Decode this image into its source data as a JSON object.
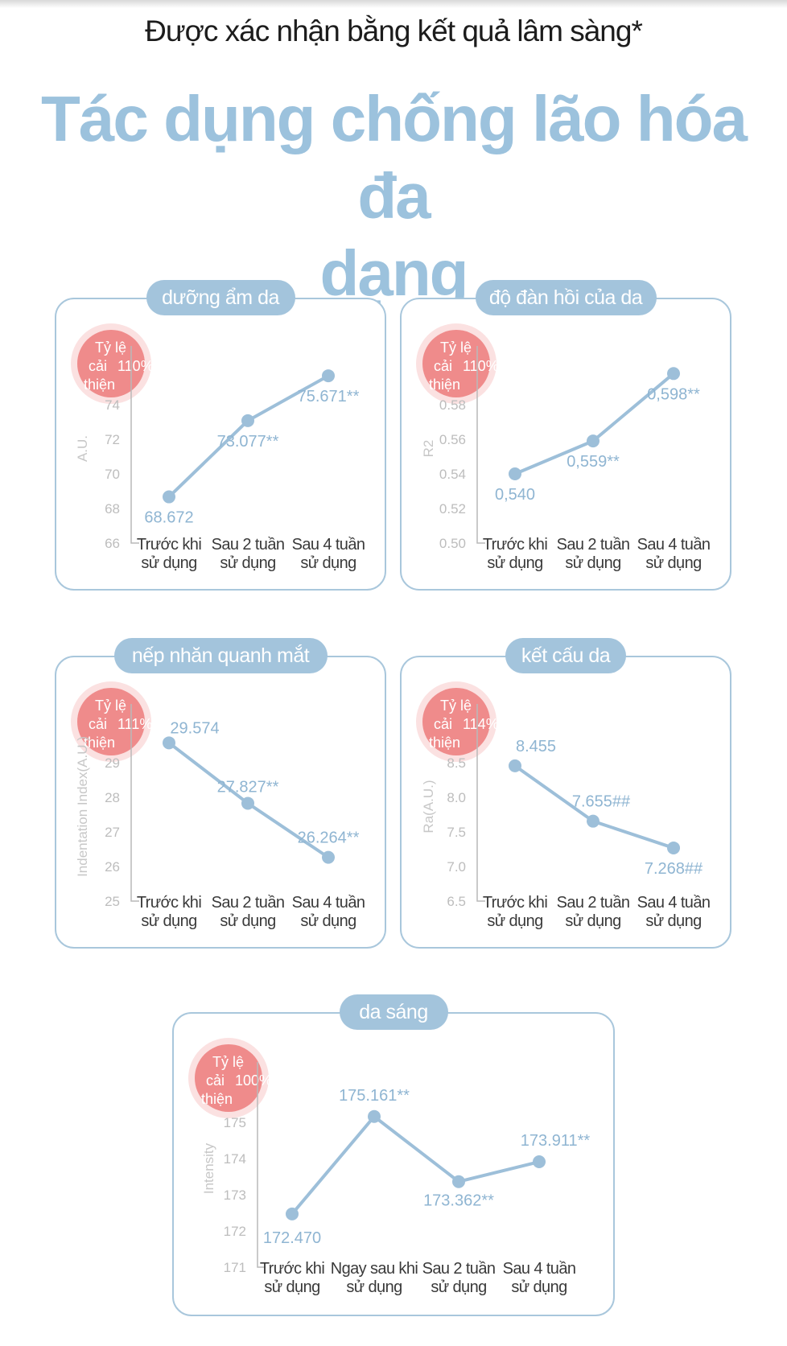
{
  "header": {
    "subtitle": "Được xác nhận bằng kết quả lâm sàng*",
    "headline_line1": "Tác dụng chống lão hóa đa",
    "headline_line2": "dạng"
  },
  "badge": {
    "line1": "Tỷ lệ",
    "line2": "cải",
    "line3": "thiện"
  },
  "colors": {
    "accent": "#9cc2dd",
    "pill": "#a3c4dc",
    "series": "#9dbfd9",
    "badge": "#ef8b8b"
  },
  "chart_data": [
    {
      "type": "line",
      "title": "dưỡng ẩm da",
      "improvement": "110%",
      "ylabel": "A.U.",
      "ylim": [
        66,
        76
      ],
      "yticks": [
        "66",
        "68",
        "70",
        "72",
        "74"
      ],
      "categories": [
        [
          "Trước khi",
          "sử dụng"
        ],
        [
          "Sau 2 tuần",
          "sử dụng"
        ],
        [
          "Sau 4 tuần",
          "sử dụng"
        ]
      ],
      "values": [
        68.672,
        73.077,
        75.671
      ],
      "value_labels": [
        "68.672",
        "73.077**",
        "75.671**"
      ]
    },
    {
      "type": "line",
      "title": "độ đàn hồi của da",
      "improvement": "110%",
      "ylabel": "R2",
      "ylim": [
        0.5,
        0.6
      ],
      "yticks": [
        "0.50",
        "0.52",
        "0.54",
        "0.56",
        "0.58"
      ],
      "categories": [
        [
          "Trước khi",
          "sử dụng"
        ],
        [
          "Sau 2 tuần",
          "sử dụng"
        ],
        [
          "Sau 4 tuần",
          "sử dụng"
        ]
      ],
      "values": [
        0.54,
        0.559,
        0.598
      ],
      "value_labels": [
        "0,540",
        "0,559**",
        "0,598**"
      ]
    },
    {
      "type": "line",
      "title": "nếp nhăn quanh mắt",
      "improvement": "111%",
      "ylabel": "Indentation Index(A.U.)",
      "ylim": [
        25,
        30
      ],
      "yticks": [
        "25",
        "26",
        "27",
        "28",
        "29"
      ],
      "categories": [
        [
          "Trước khi",
          "sử dụng"
        ],
        [
          "Sau 2 tuần",
          "sử dụng"
        ],
        [
          "Sau 4 tuần",
          "sử dụng"
        ]
      ],
      "values": [
        29.574,
        27.827,
        26.264
      ],
      "value_labels": [
        "29.574",
        "27.827**",
        "26.264**"
      ]
    },
    {
      "type": "line",
      "title": "kết cấu da",
      "improvement": "114%",
      "ylabel": "Ra(A.U.)",
      "ylim": [
        6.5,
        9.0
      ],
      "yticks": [
        "6.5",
        "7.0",
        "7.5",
        "8.0",
        "8.5"
      ],
      "categories": [
        [
          "Trước khi",
          "sử dụng"
        ],
        [
          "Sau 2 tuần",
          "sử dụng"
        ],
        [
          "Sau 4 tuần",
          "sử dụng"
        ]
      ],
      "values": [
        8.455,
        7.655,
        7.268
      ],
      "value_labels": [
        "8.455",
        "7.655##",
        "7.268##"
      ]
    },
    {
      "type": "line",
      "title": "da sáng",
      "improvement": "100%",
      "ylabel": "Intensity",
      "ylim": [
        171,
        176
      ],
      "yticks": [
        "171",
        "172",
        "173",
        "174",
        "175"
      ],
      "categories": [
        [
          "Trước khi",
          "sử dụng"
        ],
        [
          "Ngay sau khi",
          "sử dụng"
        ],
        [
          "Sau 2 tuần",
          "sử dụng"
        ],
        [
          "Sau 4 tuần",
          "sử dụng"
        ]
      ],
      "values": [
        172.47,
        175.161,
        173.362,
        173.911
      ],
      "value_labels": [
        "172.470",
        "175.161**",
        "173.362**",
        "173.911**"
      ]
    }
  ]
}
